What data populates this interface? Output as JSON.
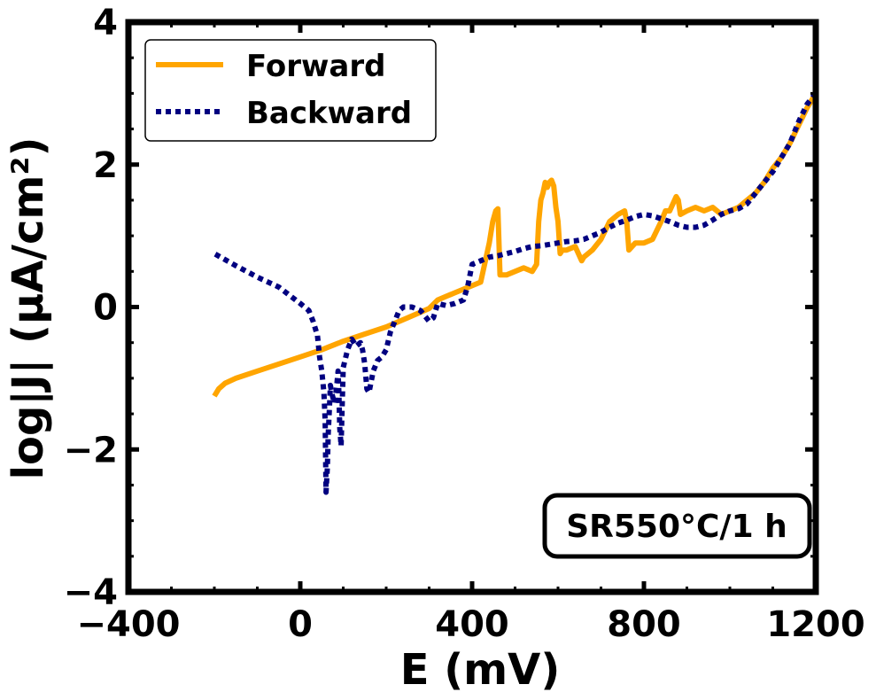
{
  "chart_data": {
    "type": "line",
    "xlabel": "E (mV)",
    "ylabel": "log|J| (μA/cm²)",
    "xlim": [
      -400,
      1200
    ],
    "ylim": [
      -4,
      4
    ],
    "xticks": [
      -400,
      0,
      400,
      800,
      1200
    ],
    "yticks": [
      -4,
      -2,
      0,
      2,
      4
    ],
    "xtick_labels": [
      "−400",
      "0",
      "400",
      "800",
      "1200"
    ],
    "ytick_labels": [
      "−4",
      "−2",
      "0",
      "2",
      "4"
    ],
    "grid": false,
    "legend_placement": "top-left",
    "annotation": "SR550°C/1 h",
    "series": [
      {
        "name": "Forward",
        "color": "#FFA500",
        "style": "solid",
        "x": [
          -200,
          -190,
          -175,
          -150,
          -100,
          -50,
          0,
          50,
          100,
          150,
          200,
          250,
          300,
          320,
          340,
          360,
          380,
          400,
          420,
          440,
          448,
          455,
          460,
          465,
          480,
          500,
          520,
          540,
          550,
          555,
          560,
          565,
          570,
          575,
          580,
          585,
          590,
          595,
          600,
          605,
          610,
          620,
          640,
          655,
          660,
          680,
          700,
          720,
          740,
          755,
          760,
          765,
          780,
          800,
          820,
          840,
          850,
          860,
          875,
          880,
          885,
          900,
          920,
          940,
          960,
          980,
          1000,
          1020,
          1040,
          1060,
          1080,
          1100,
          1120,
          1140,
          1160,
          1180,
          1200
        ],
        "y": [
          -1.25,
          -1.15,
          -1.07,
          -1.0,
          -0.9,
          -0.8,
          -0.7,
          -0.6,
          -0.48,
          -0.38,
          -0.28,
          -0.15,
          -0.02,
          0.1,
          0.15,
          0.2,
          0.25,
          0.3,
          0.35,
          0.9,
          1.2,
          1.35,
          1.38,
          0.45,
          0.45,
          0.5,
          0.55,
          0.5,
          0.6,
          1.2,
          1.5,
          1.6,
          1.75,
          1.68,
          1.75,
          1.78,
          1.7,
          1.4,
          1.2,
          0.75,
          0.8,
          0.8,
          0.85,
          0.65,
          0.7,
          0.8,
          0.95,
          1.2,
          1.3,
          1.35,
          1.2,
          0.8,
          0.9,
          0.9,
          0.95,
          1.2,
          1.35,
          1.35,
          1.55,
          1.5,
          1.3,
          1.35,
          1.4,
          1.35,
          1.4,
          1.3,
          1.35,
          1.4,
          1.5,
          1.6,
          1.75,
          1.95,
          2.1,
          2.3,
          2.55,
          2.8,
          3.0
        ]
      },
      {
        "name": "Backward",
        "color": "#000080",
        "style": "dotted",
        "x": [
          1200,
          1180,
          1160,
          1140,
          1120,
          1100,
          1080,
          1060,
          1040,
          1020,
          1000,
          980,
          960,
          940,
          920,
          900,
          880,
          860,
          840,
          820,
          800,
          780,
          760,
          740,
          720,
          700,
          680,
          660,
          640,
          620,
          600,
          580,
          560,
          540,
          520,
          500,
          480,
          460,
          440,
          420,
          400,
          390,
          380,
          360,
          340,
          320,
          310,
          300,
          280,
          260,
          240,
          230,
          220,
          210,
          200,
          190,
          180,
          170,
          160,
          155,
          150,
          145,
          140,
          130,
          120,
          110,
          100,
          95,
          92,
          90,
          88,
          85,
          80,
          75,
          70,
          68,
          65,
          63,
          60,
          58,
          55,
          50,
          45,
          40,
          30,
          20,
          0,
          -50,
          -100,
          -150,
          -200
        ],
        "y": [
          3.0,
          2.85,
          2.6,
          2.3,
          2.1,
          1.9,
          1.75,
          1.6,
          1.45,
          1.38,
          1.35,
          1.3,
          1.22,
          1.15,
          1.12,
          1.12,
          1.15,
          1.2,
          1.24,
          1.28,
          1.3,
          1.27,
          1.22,
          1.18,
          1.12,
          1.05,
          1.0,
          0.95,
          0.93,
          0.92,
          0.9,
          0.88,
          0.86,
          0.85,
          0.82,
          0.78,
          0.75,
          0.72,
          0.7,
          0.65,
          0.6,
          0.3,
          0.1,
          0.05,
          0.02,
          0.05,
          -0.15,
          -0.2,
          -0.05,
          0.0,
          0.0,
          -0.05,
          -0.2,
          -0.35,
          -0.6,
          -0.7,
          -0.75,
          -0.9,
          -1.2,
          -1.15,
          -0.8,
          -0.6,
          -0.5,
          -0.55,
          -0.45,
          -0.6,
          -0.85,
          -1.95,
          -1.7,
          -1.2,
          -0.9,
          -1.1,
          -1.35,
          -1.25,
          -1.1,
          -1.4,
          -1.8,
          -2.25,
          -2.6,
          -1.6,
          -1.2,
          -0.9,
          -0.7,
          -0.4,
          -0.2,
          -0.05,
          0.05,
          0.28,
          0.42,
          0.58,
          0.75
        ]
      }
    ]
  }
}
